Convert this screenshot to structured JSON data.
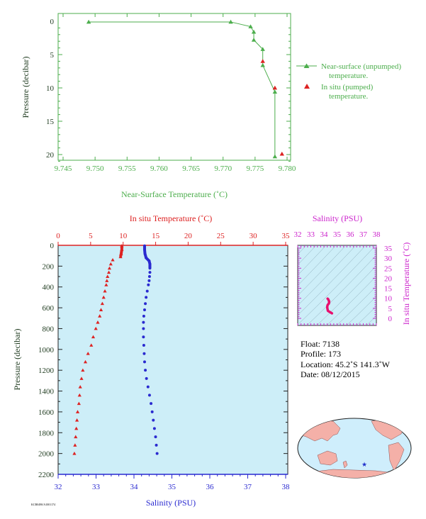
{
  "chart_data": [
    {
      "type": "line",
      "xlabel": "Near-Surface Temperature (˚C)",
      "ylabel": "Pressure (decibar)",
      "xlim": [
        9.745,
        9.78
      ],
      "ylim": [
        0,
        22
      ],
      "xticks": [
        "9.745",
        "9.750",
        "9.755",
        "9.760",
        "9.765",
        "9.770",
        "9.775",
        "9.780"
      ],
      "yticks": [
        "0",
        "5",
        "10",
        "15",
        "20"
      ],
      "legend_placement": "right",
      "series": [
        {
          "name": "Near-surface (unpumped) temperature.",
          "color": "#4cae4c",
          "marker": "triangle",
          "x": [
            9.749,
            9.7712,
            9.7743,
            9.7748,
            9.7748,
            9.7762,
            9.7762,
            9.7781,
            9.7781
          ],
          "y": [
            0.1,
            0.1,
            0.8,
            1.6,
            2.8,
            4.2,
            6.6,
            10.6,
            20.3
          ]
        },
        {
          "name": "In situ (pumped) temperature.",
          "color": "#dd2222",
          "marker": "triangle",
          "x": [
            9.7762,
            9.7781,
            9.7792
          ],
          "y": [
            6.0,
            10.0,
            19.9
          ]
        }
      ]
    },
    {
      "type": "line",
      "ylabel": "Pressure (decibar)",
      "background": "#cdeef8",
      "ylim": [
        0,
        2200
      ],
      "yticks": [
        "0",
        "200",
        "400",
        "600",
        "800",
        "1000",
        "1200",
        "1400",
        "1600",
        "1800",
        "2000",
        "2200"
      ],
      "top_axis": {
        "label": "In situ Temperature (˚C)",
        "color": "#dd2222",
        "range": [
          0,
          35
        ],
        "ticks": [
          "0",
          "5",
          "10",
          "15",
          "20",
          "25",
          "30",
          "35"
        ]
      },
      "bottom_axis": {
        "label": "Salinity (PSU)",
        "color": "#2a2ad0",
        "range": [
          32,
          38
        ],
        "ticks": [
          "32",
          "33",
          "34",
          "35",
          "36",
          "37",
          "38"
        ]
      },
      "series": [
        {
          "variable": "temperature",
          "color": "#dd2222",
          "marker": "triangle",
          "pressure": [
            5,
            40,
            80,
            110,
            140,
            180,
            220,
            260,
            300,
            340,
            380,
            440,
            500,
            560,
            620,
            680,
            740,
            800,
            880,
            960,
            1040,
            1120,
            1200,
            1280,
            1360,
            1440,
            1520,
            1600,
            1680,
            1760,
            1840,
            1920,
            2000
          ],
          "values": [
            9.8,
            9.8,
            9.7,
            9.6,
            8.4,
            8.1,
            7.9,
            7.8,
            7.6,
            7.5,
            7.4,
            7.2,
            7.0,
            6.8,
            6.6,
            6.4,
            6.1,
            5.8,
            5.4,
            5.1,
            4.6,
            4.2,
            3.8,
            3.6,
            3.4,
            3.3,
            3.2,
            3.0,
            2.9,
            2.8,
            2.7,
            2.6,
            2.5
          ]
        },
        {
          "variable": "salinity",
          "color": "#2a2ad0",
          "marker": "dot",
          "pressure": [
            5,
            40,
            80,
            120,
            150,
            180,
            220,
            260,
            300,
            340,
            380,
            440,
            500,
            560,
            620,
            680,
            740,
            800,
            880,
            960,
            1040,
            1120,
            1200,
            1280,
            1360,
            1440,
            1520,
            1600,
            1680,
            1760,
            1840,
            1920,
            2000
          ],
          "values": [
            34.28,
            34.28,
            34.29,
            34.32,
            34.4,
            34.42,
            34.42,
            34.42,
            34.41,
            34.4,
            34.38,
            34.35,
            34.32,
            34.3,
            34.28,
            34.26,
            34.25,
            34.25,
            34.25,
            34.26,
            34.27,
            34.28,
            34.3,
            34.33,
            34.37,
            34.41,
            34.45,
            34.48,
            34.51,
            34.54,
            34.57,
            34.59,
            34.61
          ]
        }
      ]
    },
    {
      "type": "scatter",
      "xlabel": "Salinity (PSU)",
      "ylabel": "In situ Temperature (˚C)",
      "label_color": "#cc22cc",
      "background": "#cdeef8",
      "xlim": [
        32,
        38
      ],
      "ylim": [
        0,
        35
      ],
      "xticks": [
        "32",
        "33",
        "34",
        "35",
        "36",
        "37",
        "38"
      ],
      "yticks": [
        "0",
        "5",
        "10",
        "15",
        "20",
        "25",
        "30",
        "35"
      ],
      "series": [
        {
          "color": "#e8106e",
          "x": [
            34.28,
            34.32,
            34.4,
            34.38,
            34.32,
            34.28,
            34.25,
            34.26,
            34.3,
            34.41,
            34.51,
            34.61
          ],
          "y": [
            9.8,
            9.6,
            8.4,
            7.4,
            7.0,
            6.6,
            5.8,
            5.1,
            3.8,
            3.3,
            2.9,
            2.5
          ]
        }
      ]
    }
  ],
  "info": {
    "float": "Float:  7138",
    "profile": "Profile:  173",
    "location": "Location:  45.2˚S  141.3˚W",
    "date": "Date:  08/12/2015"
  },
  "footer_code": "KCB0490/A1001174",
  "map": {
    "ocean_color": "#cfeefc",
    "land_color": "#f4b0a8",
    "marker_color": "#2233cc"
  }
}
